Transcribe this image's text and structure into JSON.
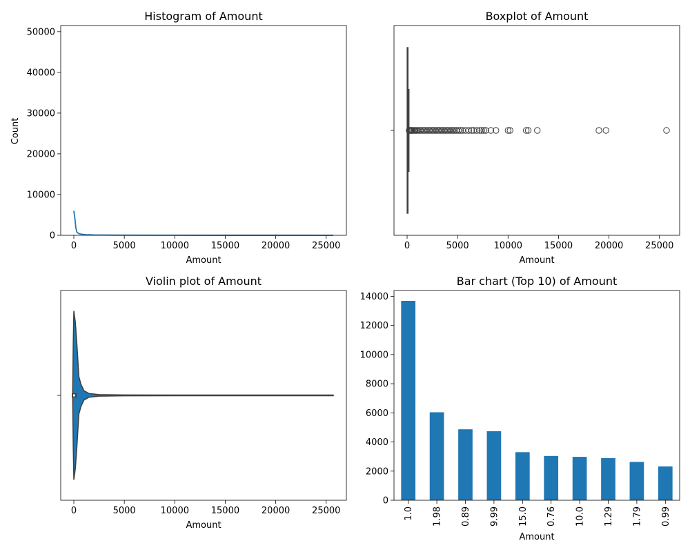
{
  "colors": {
    "primary": "#1f77b4",
    "dark": "#3f3f3f",
    "frame": "#000000"
  },
  "chart_data": [
    {
      "type": "histogram",
      "title": "Histogram of Amount",
      "xlabel": "Amount",
      "ylabel": "Count",
      "xlim": [
        -1300,
        27000
      ],
      "ylim": [
        0,
        51500
      ],
      "xticks": [
        0,
        5000,
        10000,
        15000,
        20000,
        25000
      ],
      "yticks": [
        0,
        10000,
        20000,
        30000,
        40000,
        50000
      ],
      "kde_curve": [
        [
          0,
          6000
        ],
        [
          100,
          4200
        ],
        [
          200,
          1800
        ],
        [
          300,
          800
        ],
        [
          500,
          400
        ],
        [
          800,
          250
        ],
        [
          1200,
          150
        ],
        [
          2000,
          80
        ],
        [
          4000,
          40
        ],
        [
          8000,
          20
        ],
        [
          15000,
          10
        ],
        [
          25700,
          5
        ]
      ]
    },
    {
      "type": "boxplot",
      "title": "Boxplot of Amount",
      "xlabel": "Amount",
      "xlim": [
        -1300,
        27000
      ],
      "xticks": [
        0,
        5000,
        10000,
        15000,
        20000,
        25000
      ],
      "box": {
        "q1": 5.6,
        "median": 22,
        "q3": 77,
        "whisker_low": 0,
        "whisker_high": 185
      },
      "outliers": [
        200,
        250,
        300,
        350,
        400,
        450,
        500,
        600,
        700,
        800,
        900,
        1000,
        1150,
        1300,
        1450,
        1600,
        1750,
        1900,
        2050,
        2200,
        2350,
        2500,
        2650,
        2800,
        2950,
        3100,
        3250,
        3400,
        3550,
        3700,
        3850,
        4000,
        4150,
        4300,
        4450,
        4600,
        4750,
        4900,
        5100,
        5300,
        5500,
        5800,
        6100,
        6400,
        6600,
        6900,
        7200,
        7400,
        7600,
        7800,
        8300,
        8800,
        10000,
        10200,
        11800,
        12000,
        12900,
        19000,
        19700,
        25700
      ]
    },
    {
      "type": "violin",
      "title": "Violin plot of Amount",
      "xlabel": "Amount",
      "xlim": [
        -1300,
        27000
      ],
      "xticks": [
        0,
        5000,
        10000,
        15000,
        20000,
        25000
      ],
      "density_profile": [
        [
          -120,
          0
        ],
        [
          -60,
          0.55
        ],
        [
          0,
          0.9
        ],
        [
          150,
          0.78
        ],
        [
          300,
          0.55
        ],
        [
          500,
          0.2
        ],
        [
          700,
          0.12
        ],
        [
          1000,
          0.05
        ],
        [
          1500,
          0.02
        ],
        [
          2500,
          0.008
        ],
        [
          5000,
          0.005
        ],
        [
          10000,
          0.004
        ],
        [
          20000,
          0.004
        ],
        [
          25700,
          0.004
        ]
      ]
    },
    {
      "type": "bar",
      "title": "Bar chart (Top 10) of Amount",
      "xlabel": "Amount",
      "categories": [
        "1.0",
        "1.98",
        "0.89",
        "9.99",
        "15.0",
        "0.76",
        "10.0",
        "1.29",
        "1.79",
        "0.99"
      ],
      "values": [
        13690,
        6040,
        4870,
        4740,
        3300,
        3040,
        2980,
        2890,
        2630,
        2320
      ],
      "ylim": [
        0,
        14400
      ],
      "yticks": [
        0,
        2000,
        4000,
        6000,
        8000,
        10000,
        12000,
        14000
      ]
    }
  ]
}
